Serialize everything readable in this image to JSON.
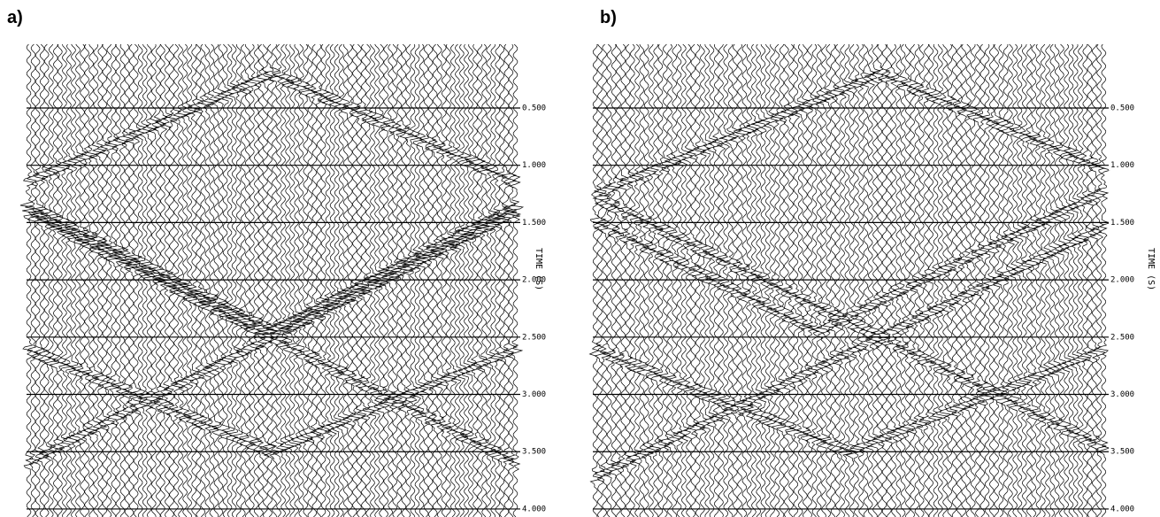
{
  "chart_data": [
    {
      "type": "seismic",
      "title": "a)",
      "y_label": "TIME (S)",
      "ylim": [
        0,
        4.05
      ],
      "yticks": [
        {
          "value": 0.5,
          "label": "0.500"
        },
        {
          "value": 1.0,
          "label": "1.000"
        },
        {
          "value": 1.5,
          "label": "1.500"
        },
        {
          "value": 2.0,
          "label": "2.000"
        },
        {
          "value": 2.5,
          "label": "2.500"
        },
        {
          "value": 3.0,
          "label": "3.000"
        },
        {
          "value": 3.5,
          "label": "3.500"
        },
        {
          "value": 4.0,
          "label": "4.000"
        }
      ],
      "grid": true,
      "color": "#000000"
    },
    {
      "type": "seismic",
      "title": "b)",
      "y_label": "TIME (S)",
      "ylim": [
        0,
        4.05
      ],
      "yticks": [
        {
          "value": 0.5,
          "label": "0.500"
        },
        {
          "value": 1.0,
          "label": "1.000"
        },
        {
          "value": 1.5,
          "label": "1.500"
        },
        {
          "value": 2.0,
          "label": "2.000"
        },
        {
          "value": 2.5,
          "label": "2.500"
        },
        {
          "value": 3.0,
          "label": "3.000"
        },
        {
          "value": 3.5,
          "label": "3.500"
        },
        {
          "value": 4.0,
          "label": "4.000"
        }
      ],
      "grid": true,
      "color": "#000000"
    }
  ]
}
